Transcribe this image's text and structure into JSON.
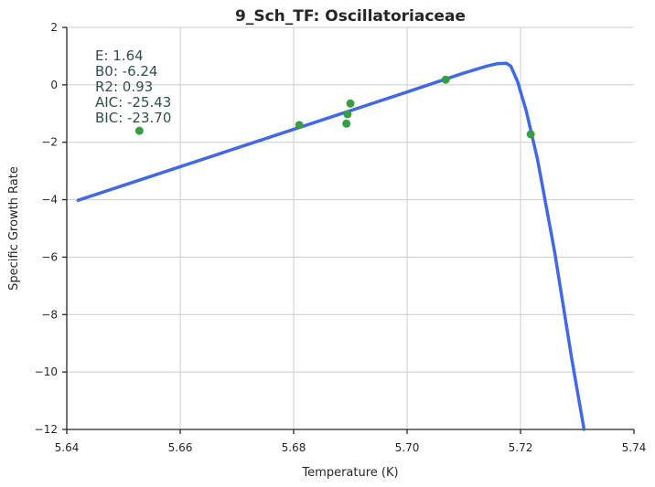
{
  "chart_data": {
    "type": "scatter",
    "title": "9_Sch_TF: Oscillatoriaceae",
    "xlabel": "Temperature (K)",
    "ylabel": "Specific Growth Rate",
    "xlim": [
      5.64,
      5.74
    ],
    "ylim": [
      -12,
      2
    ],
    "x_ticks": [
      "5.64",
      "5.66",
      "5.68",
      "5.70",
      "5.72",
      "5.74"
    ],
    "y_ticks": [
      "2",
      "0",
      "−2",
      "−4",
      "−6",
      "−8",
      "−10",
      "−12"
    ],
    "grid": true,
    "annotation": [
      "E:  1.64",
      "B0:  -6.24",
      "R2:  0.93",
      "AIC: -25.43",
      "BIC: -23.70"
    ],
    "points": {
      "color": "#3a9c43",
      "x": [
        5.6528,
        5.681,
        5.6893,
        5.6895,
        5.69,
        5.7068,
        5.7218
      ],
      "y": [
        -1.6,
        -1.4,
        -1.35,
        -1.02,
        -0.65,
        0.18,
        -1.72
      ]
    },
    "fit_line": {
      "color": "#4169e1",
      "x": [
        5.642,
        5.66,
        5.68,
        5.7,
        5.705,
        5.71,
        5.714,
        5.716,
        5.7175,
        5.7183,
        5.7195,
        5.721,
        5.723,
        5.726,
        5.729,
        5.7312
      ],
      "y": [
        -4.02,
        -2.85,
        -1.55,
        -0.25,
        0.08,
        0.41,
        0.65,
        0.74,
        0.75,
        0.65,
        0.1,
        -0.9,
        -2.6,
        -5.8,
        -9.5,
        -12.0
      ]
    }
  }
}
